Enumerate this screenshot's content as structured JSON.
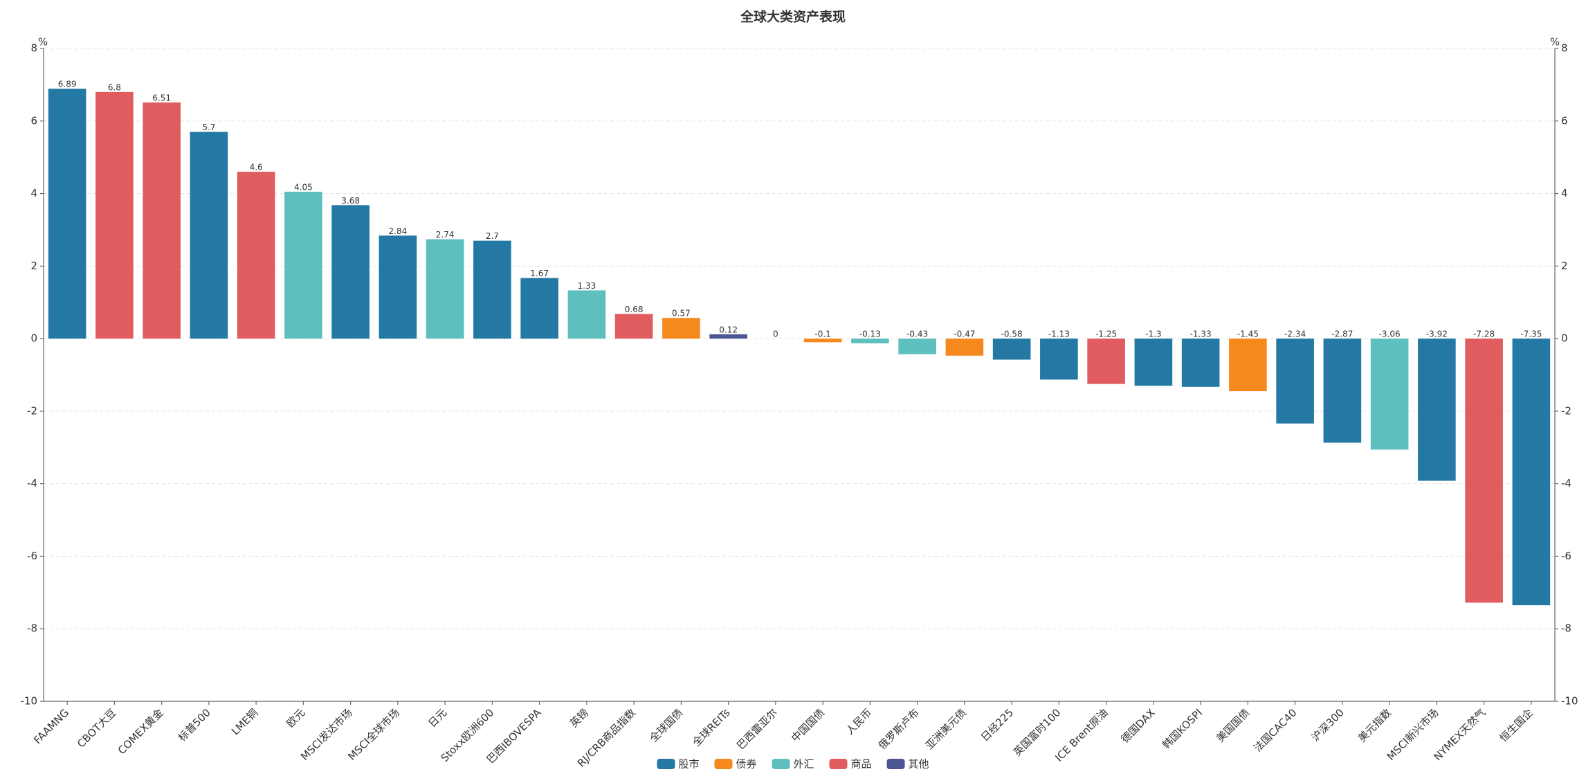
{
  "chart_data": {
    "type": "bar",
    "title": "全球大类资产表现",
    "y_axis_label": "%",
    "y2_axis_label": "%",
    "categories": [
      "FAAMNG",
      "CBOT大豆",
      "COMEX黄金",
      "标普500",
      "LME铜",
      "欧元",
      "MSCI发达市场",
      "MSCI全球市场",
      "日元",
      "Stoxx欧洲600",
      "巴西IBOVESPA",
      "英镑",
      "RJ/CRB商品指数",
      "全球国债",
      "全球REITs",
      "巴西雷亚尔",
      "中国国债",
      "人民币",
      "俄罗斯卢布",
      "亚洲美元债",
      "日经225",
      "英国富时100",
      "ICE Brent原油",
      "德国DAX",
      "韩国KOSPI",
      "美国国债",
      "法国CAC40",
      "沪深300",
      "美元指数",
      "MSCI新兴市场",
      "NYMEX天然气",
      "恒生国企"
    ],
    "series": [
      {
        "name": "股市",
        "color": "#2378a4",
        "values": [
          6.89,
          null,
          null,
          5.7,
          null,
          null,
          3.68,
          2.84,
          null,
          2.7,
          1.67,
          null,
          null,
          null,
          null,
          null,
          null,
          null,
          null,
          null,
          -0.58,
          -1.13,
          null,
          -1.3,
          -1.33,
          null,
          -2.34,
          -2.87,
          null,
          -3.92,
          null,
          -7.35
        ]
      },
      {
        "name": "债券",
        "color": "#f5891e",
        "values": [
          null,
          null,
          null,
          null,
          null,
          null,
          null,
          null,
          null,
          null,
          null,
          null,
          null,
          0.57,
          null,
          null,
          -0.1,
          null,
          null,
          -0.47,
          null,
          null,
          null,
          null,
          null,
          -1.45,
          null,
          null,
          null,
          null,
          null,
          null
        ]
      },
      {
        "name": "外汇",
        "color": "#5ebfbf",
        "values": [
          null,
          null,
          null,
          null,
          null,
          4.05,
          null,
          null,
          2.74,
          null,
          null,
          1.33,
          null,
          null,
          null,
          0,
          null,
          -0.13,
          -0.43,
          null,
          null,
          null,
          null,
          null,
          null,
          null,
          null,
          null,
          -3.06,
          null,
          null,
          null
        ]
      },
      {
        "name": "商品",
        "color": "#e05c5e",
        "values": [
          null,
          6.8,
          6.51,
          null,
          4.6,
          null,
          null,
          null,
          null,
          null,
          null,
          null,
          0.68,
          null,
          null,
          null,
          null,
          null,
          null,
          null,
          null,
          null,
          -1.25,
          null,
          null,
          null,
          null,
          null,
          null,
          null,
          -7.28,
          null
        ]
      },
      {
        "name": "其他",
        "color": "#4a5592",
        "values": [
          null,
          null,
          null,
          null,
          null,
          null,
          null,
          null,
          null,
          null,
          null,
          null,
          null,
          null,
          0.12,
          null,
          null,
          null,
          null,
          null,
          null,
          null,
          null,
          null,
          null,
          null,
          null,
          null,
          null,
          null,
          null,
          null
        ]
      }
    ],
    "ylim": [
      -10,
      8
    ],
    "yticks": [
      -10,
      -8,
      -6,
      -4,
      -2,
      0,
      2,
      4,
      6,
      8
    ],
    "y2lim": [
      -10,
      8
    ],
    "y2ticks": [
      -10,
      -8,
      -6,
      -4,
      -2,
      0,
      2,
      4,
      6,
      8
    ],
    "grid": true,
    "legend_position": "bottom"
  }
}
